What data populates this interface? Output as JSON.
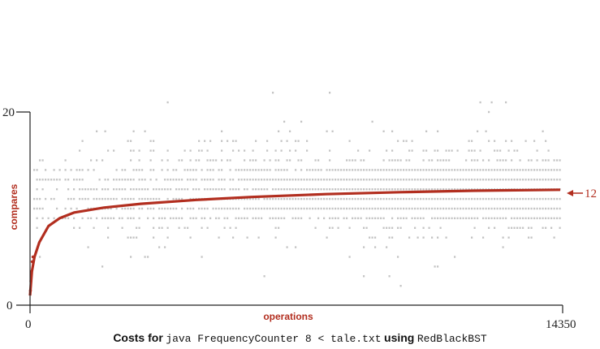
{
  "chart_data": {
    "type": "scatter",
    "xlabel": "operations",
    "ylabel": "compares",
    "xlim": [
      0,
      14350
    ],
    "ylim": [
      0,
      20
    ],
    "x_ticks": [
      "0",
      "14350"
    ],
    "y_ticks": [
      "0",
      "20"
    ],
    "series": [
      {
        "kind": "points",
        "description_color": "gray",
        "levels": [
          {
            "compares": 1,
            "density": 0.002
          },
          {
            "compares": 2,
            "density": 0.004
          },
          {
            "compares": 3,
            "density": 0.008
          },
          {
            "compares": 4,
            "density": 0.015
          },
          {
            "compares": 5,
            "density": 0.03
          },
          {
            "compares": 6,
            "density": 0.06
          },
          {
            "compares": 7,
            "density": 0.12
          },
          {
            "compares": 8,
            "density": 0.3
          },
          {
            "compares": 9,
            "density": 0.7
          },
          {
            "compares": 10,
            "density": 1.0
          },
          {
            "compares": 11,
            "density": 1.0
          },
          {
            "compares": 12,
            "density": 1.0
          },
          {
            "compares": 13,
            "density": 1.0
          },
          {
            "compares": 14,
            "density": 0.85
          },
          {
            "compares": 15,
            "density": 0.5
          },
          {
            "compares": 16,
            "density": 0.3
          },
          {
            "compares": 17,
            "density": 0.15
          },
          {
            "compares": 18,
            "density": 0.08
          },
          {
            "compares": 19,
            "density": 0.04
          },
          {
            "compares": 20,
            "density": 0.02
          },
          {
            "compares": 21,
            "density": 0.012
          },
          {
            "compares": 22,
            "density": 0.006
          },
          {
            "compares": 23,
            "density": 0.003
          }
        ]
      },
      {
        "kind": "running-average",
        "x": [
          0,
          50,
          120,
          250,
          500,
          800,
          1200,
          2000,
          3000,
          4500,
          6000,
          8000,
          10000,
          12000,
          14350
        ],
        "y": [
          1.0,
          3.5,
          5.0,
          6.5,
          8.2,
          9.0,
          9.6,
          10.1,
          10.5,
          10.9,
          11.2,
          11.5,
          11.7,
          11.85,
          11.95
        ]
      }
    ],
    "average_label": "12",
    "colors": {
      "points": "#c4c4c4",
      "average": "#b22e1f",
      "axis": "#222222"
    }
  },
  "caption": {
    "part1": "Costs for",
    "part2": "java FrequencyCounter 8 < tale.txt",
    "part3": "using",
    "part4": "RedBlackBST"
  }
}
